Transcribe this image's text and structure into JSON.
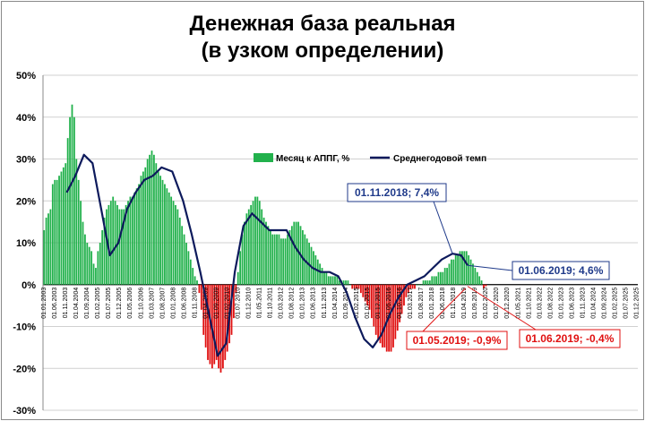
{
  "title_line1": "Денежная база реальная",
  "title_line2": "(в узком определении)",
  "chart_data": {
    "type": "bar+line",
    "ylim": [
      -30,
      50
    ],
    "y_ticks": [
      "50%",
      "40%",
      "30%",
      "20%",
      "10%",
      "0%",
      "-10%",
      "-20%",
      "-30%"
    ],
    "x_labels": [
      "01.01.2003",
      "01.06.2003",
      "01.11.2003",
      "01.04.2004",
      "01.09.2004",
      "01.02.2005",
      "01.07.2005",
      "01.12.2005",
      "01.05.2006",
      "01.10.2006",
      "01.03.2007",
      "01.08.2007",
      "01.01.2008",
      "01.06.2008",
      "01.11.2008",
      "01.04.2009",
      "01.09.2009",
      "01.02.2010",
      "01.07.2010",
      "01.12.2010",
      "01.05.2011",
      "01.10.2011",
      "01.03.2012",
      "01.08.2012",
      "01.01.2013",
      "01.06.2013",
      "01.11.2013",
      "01.04.2014",
      "01.09.2014",
      "01.02.2015",
      "01.07.2015",
      "01.12.2015",
      "01.05.2016",
      "01.10.2016",
      "01.03.2017",
      "01.08.2017",
      "01.01.2018",
      "01.06.2018",
      "01.11.2018",
      "01.04.2019",
      "01.09.2019",
      "01.02.2020",
      "01.07.2020",
      "01.12.2020",
      "01.05.2021",
      "01.10.2021",
      "01.03.2022",
      "01.08.2022",
      "01.01.2023",
      "01.06.2023",
      "01.11.2023",
      "01.04.2024",
      "01.09.2024",
      "01.02.2025",
      "01.07.2025",
      "01.12.2025"
    ],
    "series": [
      {
        "name": "Месяц к АППГ, %",
        "kind": "bar",
        "positive_color": "#22b14c",
        "negative_color": "#e01010",
        "start": "2003-01",
        "values": [
          13,
          16,
          17,
          18,
          24,
          25,
          25,
          26,
          27,
          28,
          29,
          35,
          40,
          43,
          40,
          30,
          25,
          20,
          15,
          12,
          10,
          9,
          8,
          5,
          4,
          8,
          10,
          13,
          16,
          18,
          19,
          20,
          21,
          20,
          19,
          18,
          18,
          18,
          19,
          20,
          21,
          21,
          22,
          23,
          24,
          26,
          27,
          28,
          30,
          31,
          32,
          31,
          29,
          27,
          26,
          25,
          24,
          23,
          22,
          21,
          20,
          19,
          18,
          16,
          14,
          12,
          10,
          8,
          6,
          4,
          2,
          1,
          -2,
          -6,
          -12,
          -15,
          -18,
          -19,
          -20,
          -19,
          -18,
          -20,
          -21,
          -20,
          -18,
          -16,
          -14,
          -12,
          -8,
          -2,
          3,
          8,
          12,
          15,
          17,
          18,
          19,
          20,
          21,
          21,
          20,
          18,
          16,
          15,
          14,
          13,
          12,
          12,
          12,
          12,
          11,
          11,
          11,
          12,
          13,
          14,
          15,
          15,
          15,
          14,
          13,
          12,
          11,
          10,
          9,
          8,
          7,
          6,
          5,
          4,
          3,
          3,
          2,
          2,
          2,
          2,
          2,
          1,
          1,
          1,
          1,
          1,
          0,
          -1,
          -1,
          -1,
          -1,
          -2,
          -3,
          -4,
          -5,
          -6,
          -8,
          -10,
          -12,
          -13,
          -14,
          -15,
          -15,
          -16,
          -16,
          -16,
          -15,
          -13,
          -11,
          -9,
          -7,
          -5,
          -3,
          -2,
          -1,
          -1,
          -1,
          0,
          0,
          0,
          1,
          1,
          1,
          1,
          2,
          2,
          2,
          3,
          3,
          3,
          4,
          4,
          5,
          6,
          6,
          7,
          7,
          8,
          8,
          8,
          8,
          7,
          6,
          5,
          4,
          3,
          2,
          1,
          -0.9,
          -0.4
        ]
      },
      {
        "name": "Среднегодовой темп",
        "kind": "line",
        "color": "#0d1a5c",
        "points": [
          [
            2003.917,
            22
          ],
          [
            2004.25,
            26
          ],
          [
            2004.583,
            31
          ],
          [
            2004.917,
            29
          ],
          [
            2005.25,
            18
          ],
          [
            2005.583,
            7
          ],
          [
            2005.917,
            10
          ],
          [
            2006.25,
            18
          ],
          [
            2006.583,
            22
          ],
          [
            2006.917,
            25
          ],
          [
            2007.25,
            26
          ],
          [
            2007.583,
            28
          ],
          [
            2008.0,
            27
          ],
          [
            2008.417,
            20
          ],
          [
            2008.75,
            12
          ],
          [
            2009.083,
            3
          ],
          [
            2009.417,
            -7
          ],
          [
            2009.75,
            -17
          ],
          [
            2010.083,
            -14
          ],
          [
            2010.417,
            3
          ],
          [
            2010.75,
            14
          ],
          [
            2011.083,
            17
          ],
          [
            2011.417,
            15
          ],
          [
            2011.75,
            13
          ],
          [
            2012.083,
            13
          ],
          [
            2012.417,
            13
          ],
          [
            2012.75,
            9
          ],
          [
            2013.083,
            6
          ],
          [
            2013.417,
            4
          ],
          [
            2013.75,
            3
          ],
          [
            2014.083,
            3
          ],
          [
            2014.417,
            2
          ],
          [
            2014.75,
            -2
          ],
          [
            2015.083,
            -8
          ],
          [
            2015.417,
            -13
          ],
          [
            2015.75,
            -15
          ],
          [
            2016.083,
            -12
          ],
          [
            2016.417,
            -7
          ],
          [
            2016.75,
            -3
          ],
          [
            2017.083,
            0
          ],
          [
            2017.417,
            1
          ],
          [
            2017.75,
            2
          ],
          [
            2018.083,
            4
          ],
          [
            2018.417,
            6
          ],
          [
            2018.833,
            7.4
          ],
          [
            2019.167,
            7
          ],
          [
            2019.417,
            4.6
          ]
        ]
      }
    ],
    "annotations": [
      {
        "text": "01.11.2018; 7,4%",
        "color": "#1f3a8a",
        "x": 2018.833,
        "y": 7.4
      },
      {
        "text": "01.06.2019; 4,6%",
        "color": "#1f3a8a",
        "x": 2019.417,
        "y": 4.6
      },
      {
        "text": "01.05.2019; -0,9%",
        "color": "#e01010",
        "x": 2019.333,
        "y": -0.9
      },
      {
        "text": "01.06.2019; -0,4%",
        "color": "#e01010",
        "x": 2019.417,
        "y": -0.4
      }
    ],
    "legend_placement": "upper-middle",
    "grid": "horizontal"
  }
}
